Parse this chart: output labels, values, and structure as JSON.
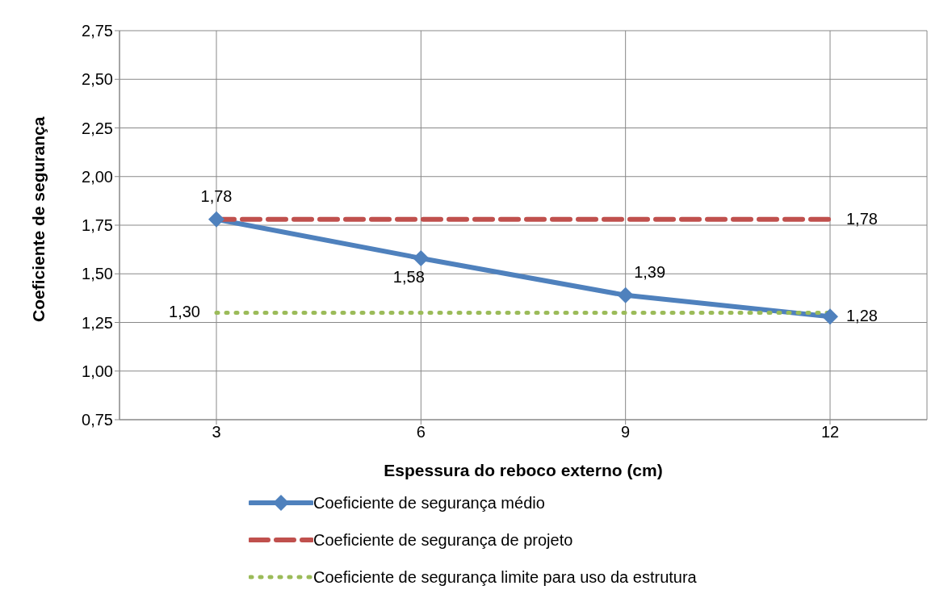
{
  "chart_data": {
    "type": "line",
    "xlabel": "Espessura do reboco externo (cm)",
    "ylabel": "Coeficiente de segurança",
    "categories": [
      "3",
      "6",
      "9",
      "12"
    ],
    "series": [
      {
        "name": "Coeficiente de segurança médio",
        "color": "#4f81bd",
        "values": [
          1.78,
          1.58,
          1.39,
          1.28
        ],
        "marker": "diamond",
        "line_style": "solid",
        "value_labels": [
          "1,78",
          "1,58",
          "1,39",
          "1,28"
        ]
      },
      {
        "name": "Coeficiente de segurança de projeto",
        "color": "#c0504d",
        "values": [
          1.78,
          1.78,
          1.78,
          1.78
        ],
        "marker": "none",
        "line_style": "dashed",
        "value_labels": [
          null,
          null,
          null,
          "1,78"
        ]
      },
      {
        "name": "Coeficiente de segurança limite para uso da estrutura",
        "color": "#9bbb59",
        "values": [
          1.3,
          1.3,
          1.3,
          1.3
        ],
        "marker": "none",
        "line_style": "dotted",
        "value_labels": [
          "1,30",
          null,
          null,
          null
        ]
      }
    ],
    "ylim": [
      0.75,
      2.75
    ],
    "yticks": [
      {
        "value": 0.75,
        "label": "0,75"
      },
      {
        "value": 1,
        "label": "1,00"
      },
      {
        "value": 1.25,
        "label": "1,25"
      },
      {
        "value": 1.5,
        "label": "1,50"
      },
      {
        "value": 1.75,
        "label": "1,75"
      },
      {
        "value": 2,
        "label": "2,00"
      },
      {
        "value": 2.25,
        "label": "2,25"
      },
      {
        "value": 2.5,
        "label": "2,50"
      },
      {
        "value": 2.75,
        "label": "2,75"
      }
    ],
    "grid": true,
    "legend": "bottom"
  }
}
